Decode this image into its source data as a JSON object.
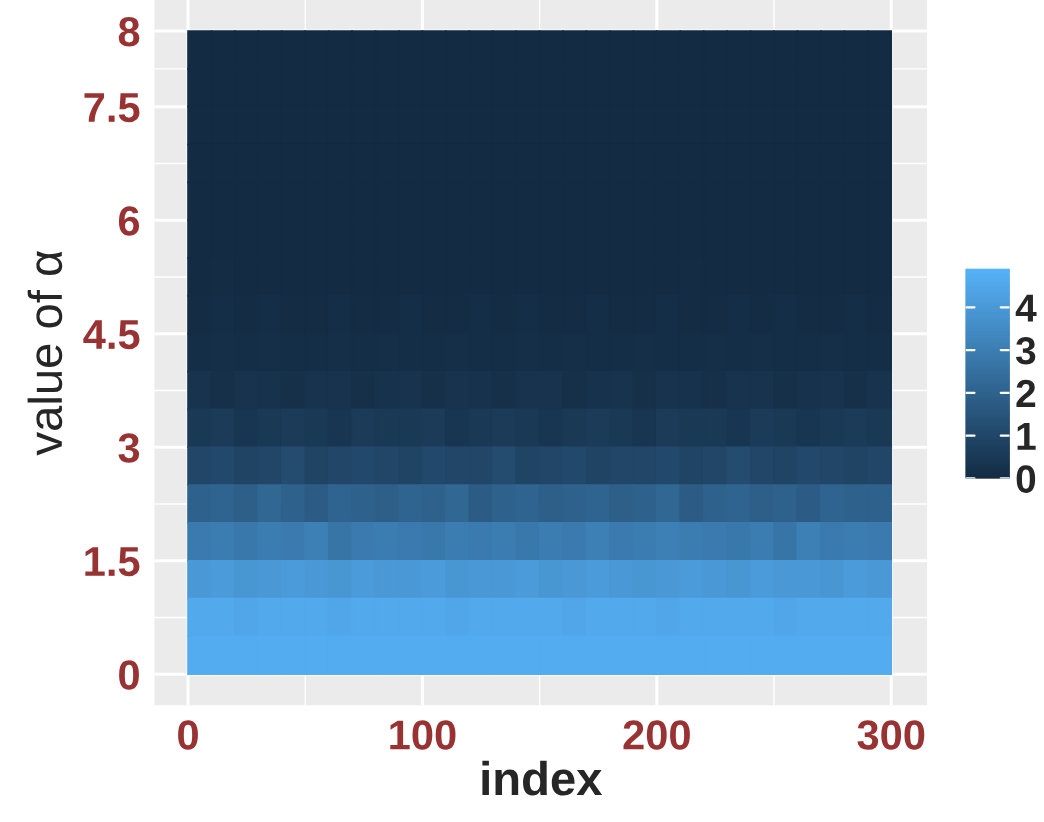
{
  "chart_data": {
    "type": "heatmap",
    "xlabel": "index",
    "ylabel": "value of α",
    "x": [
      5,
      15,
      25,
      35,
      45,
      55,
      65,
      75,
      85,
      95,
      105,
      115,
      125,
      135,
      145,
      155,
      165,
      175,
      185,
      195,
      205,
      215,
      225,
      235,
      245,
      255,
      265,
      275,
      285,
      295
    ],
    "y": [
      8.25,
      7.75,
      7.25,
      6.75,
      6.25,
      5.75,
      5.25,
      4.75,
      4.25,
      3.75,
      3.25,
      2.75,
      2.25,
      1.75,
      1.25,
      0.75,
      0.25
    ],
    "cells": [
      [
        0,
        0,
        0,
        0,
        0,
        0,
        0,
        0,
        0,
        0,
        0,
        0,
        0,
        0,
        0,
        0,
        0,
        0,
        0,
        0,
        0,
        0,
        0,
        0,
        0,
        0,
        0,
        0,
        0,
        0
      ],
      [
        0,
        0,
        0,
        0,
        0,
        0,
        0,
        0,
        0,
        0,
        0,
        0,
        0,
        0,
        0,
        0,
        0,
        0,
        0,
        0,
        0,
        0,
        0,
        0,
        0,
        0,
        0,
        0,
        0,
        0
      ],
      [
        0,
        0,
        0,
        0,
        0,
        0,
        0,
        0,
        0,
        0,
        0,
        0,
        0,
        0,
        0,
        0,
        0,
        0,
        0,
        0,
        0,
        0,
        0,
        0,
        0,
        0,
        0,
        0,
        0,
        0
      ],
      [
        0,
        0,
        0,
        0,
        0,
        0,
        0,
        0,
        0,
        0,
        0,
        0,
        0,
        0,
        0,
        0,
        0,
        0,
        0,
        0,
        0,
        0,
        0,
        0,
        0,
        0,
        0,
        0,
        0,
        0
      ],
      [
        0,
        0,
        0,
        0,
        0,
        0,
        0,
        0,
        0,
        0,
        0,
        0,
        0,
        0,
        0,
        0,
        0,
        0,
        0,
        0,
        0,
        0,
        0,
        0,
        0,
        0,
        0,
        0,
        0,
        0
      ],
      [
        0,
        0,
        0,
        0,
        0,
        0,
        0,
        0,
        0,
        0,
        0,
        0,
        0,
        0,
        0,
        0,
        0,
        0,
        0,
        0,
        0,
        0,
        0,
        0,
        0,
        0,
        0,
        0,
        0,
        0
      ],
      [
        0,
        0.05,
        0,
        0,
        0,
        0,
        0,
        0,
        0,
        0,
        0,
        0,
        0,
        0,
        0,
        0,
        0,
        0,
        0,
        0,
        0,
        0.05,
        0,
        0,
        0,
        0,
        0,
        0,
        0,
        0
      ],
      [
        0.05,
        0.1,
        0.05,
        0.1,
        0.05,
        0.05,
        0.1,
        0.05,
        0.05,
        0.1,
        0.05,
        0.05,
        0.1,
        0.05,
        0.1,
        0.05,
        0.05,
        0.1,
        0.05,
        0.05,
        0.1,
        0.05,
        0.05,
        0.1,
        0.05,
        0.1,
        0.05,
        0.05,
        0.1,
        0.05
      ],
      [
        0.1,
        0.15,
        0.1,
        0.15,
        0.1,
        0.1,
        0.15,
        0.1,
        0.15,
        0.1,
        0.1,
        0.15,
        0.1,
        0.1,
        0.15,
        0.1,
        0.15,
        0.1,
        0.1,
        0.15,
        0.1,
        0.1,
        0.15,
        0.1,
        0.15,
        0.1,
        0.1,
        0.15,
        0.1,
        0.1
      ],
      [
        0.3,
        0.2,
        0.3,
        0.25,
        0.2,
        0.3,
        0.3,
        0.2,
        0.25,
        0.3,
        0.2,
        0.3,
        0.25,
        0.2,
        0.3,
        0.3,
        0.2,
        0.25,
        0.3,
        0.2,
        0.3,
        0.25,
        0.2,
        0.3,
        0.3,
        0.2,
        0.25,
        0.3,
        0.2,
        0.3
      ],
      [
        0.5,
        0.6,
        0.4,
        0.5,
        0.6,
        0.5,
        0.4,
        0.6,
        0.5,
        0.5,
        0.6,
        0.4,
        0.5,
        0.6,
        0.5,
        0.4,
        0.5,
        0.6,
        0.5,
        0.4,
        0.6,
        0.5,
        0.5,
        0.4,
        0.6,
        0.5,
        0.4,
        0.5,
        0.6,
        0.5
      ],
      [
        1.0,
        1.1,
        0.9,
        1.0,
        1.2,
        0.9,
        1.0,
        1.1,
        1.0,
        0.9,
        1.1,
        1.0,
        1.0,
        1.2,
        0.9,
        1.0,
        1.1,
        0.9,
        1.0,
        1.0,
        1.1,
        0.9,
        1.0,
        1.2,
        1.0,
        0.9,
        1.1,
        1.0,
        0.9,
        1.0
      ],
      [
        2.0,
        2.1,
        1.9,
        2.2,
        2.0,
        1.8,
        2.1,
        2.0,
        1.9,
        2.1,
        2.0,
        2.2,
        1.8,
        2.0,
        2.1,
        1.9,
        2.0,
        2.1,
        1.9,
        2.0,
        2.2,
        1.8,
        2.0,
        2.1,
        1.9,
        2.0,
        1.8,
        2.1,
        2.0,
        2.0
      ],
      [
        2.9,
        3.0,
        2.8,
        3.0,
        2.9,
        3.1,
        2.7,
        2.9,
        3.0,
        2.9,
        2.8,
        3.0,
        2.9,
        3.0,
        2.8,
        3.0,
        2.9,
        3.1,
        2.9,
        3.0,
        3.1,
        3.0,
        2.9,
        2.8,
        3.0,
        2.7,
        3.1,
        2.9,
        3.0,
        2.9
      ],
      [
        4.0,
        4.1,
        3.9,
        4.0,
        4.1,
        4.0,
        3.9,
        4.1,
        4.0,
        4.0,
        4.1,
        3.9,
        4.0,
        4.0,
        4.1,
        3.9,
        4.0,
        4.1,
        4.0,
        3.9,
        4.0,
        4.1,
        4.0,
        3.9,
        4.1,
        4.0,
        4.0,
        3.9,
        4.1,
        4.0
      ],
      [
        4.6,
        4.6,
        4.5,
        4.6,
        4.6,
        4.6,
        4.5,
        4.6,
        4.6,
        4.6,
        4.6,
        4.5,
        4.6,
        4.6,
        4.6,
        4.6,
        4.5,
        4.6,
        4.6,
        4.6,
        4.5,
        4.6,
        4.6,
        4.6,
        4.6,
        4.5,
        4.6,
        4.6,
        4.6,
        4.6
      ],
      [
        4.7,
        4.7,
        4.7,
        4.7,
        4.7,
        4.7,
        4.7,
        4.7,
        4.7,
        4.7,
        4.7,
        4.7,
        4.7,
        4.7,
        4.7,
        4.7,
        4.7,
        4.7,
        4.7,
        4.7,
        4.7,
        4.7,
        4.7,
        4.7,
        4.7,
        4.7,
        4.7,
        4.7,
        4.7,
        4.7
      ]
    ],
    "colors": [
      "#132b43",
      "#56b1f7"
    ],
    "clim": [
      0,
      4.9
    ],
    "cticks": [
      0,
      1,
      2,
      3,
      4
    ],
    "xlim": [
      -14.3,
      315.3
    ],
    "xticks": [
      0,
      100,
      200,
      300
    ],
    "ylim": [
      -0.41,
      8.91
    ],
    "yticks": [
      0,
      1.5,
      3,
      4.5,
      6,
      7.5,
      {
        "value": 8.5,
        "label": "8"
      }
    ],
    "grid": true
  }
}
